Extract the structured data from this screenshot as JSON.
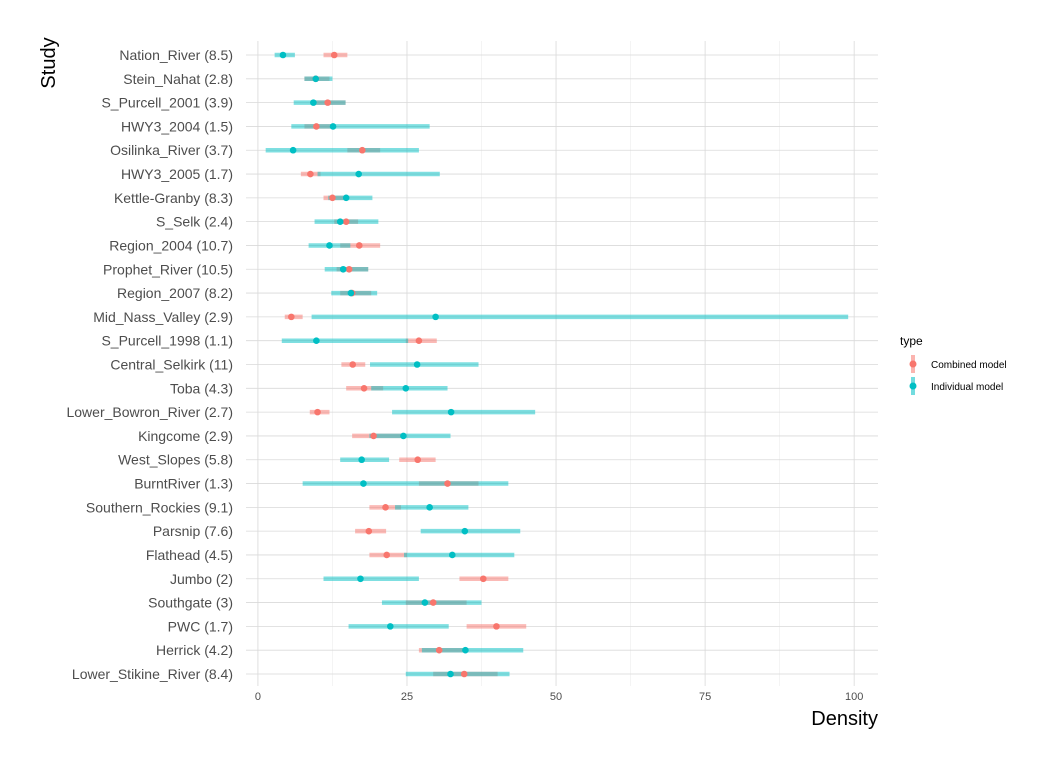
{
  "chart_data": {
    "type": "forest",
    "xlabel": "Density",
    "ylabel": "Study",
    "xlim": [
      -2,
      104
    ],
    "xticks": [
      0,
      25,
      50,
      75,
      100
    ],
    "grid": true,
    "legend": {
      "title": "type",
      "placement": "right",
      "entries": [
        {
          "name": "Combined model",
          "color": "#F8766D"
        },
        {
          "name": "Individual model",
          "color": "#00BFC4"
        }
      ]
    },
    "studies": [
      {
        "label": "Nation_River (8.5)",
        "combined": {
          "est": 12.8,
          "lo": 11.0,
          "hi": 15.0
        },
        "individual": {
          "est": 4.2,
          "lo": 2.8,
          "hi": 6.2
        }
      },
      {
        "label": "Stein_Nahat (2.8)",
        "combined": {
          "est": 9.7,
          "lo": 7.8,
          "hi": 12.0
        },
        "individual": {
          "est": 9.7,
          "lo": 7.8,
          "hi": 12.5
        }
      },
      {
        "label": "S_Purcell_2001 (3.9)",
        "combined": {
          "est": 11.7,
          "lo": 9.6,
          "hi": 14.7
        },
        "individual": {
          "est": 9.3,
          "lo": 6.0,
          "hi": 14.7
        }
      },
      {
        "label": "HWY3_2004 (1.5)",
        "combined": {
          "est": 9.8,
          "lo": 7.8,
          "hi": 12.5
        },
        "individual": {
          "est": 12.6,
          "lo": 5.6,
          "hi": 28.8
        }
      },
      {
        "label": "Osilinka_River (3.7)",
        "combined": {
          "est": 17.5,
          "lo": 15.0,
          "hi": 20.5
        },
        "individual": {
          "est": 5.9,
          "lo": 1.3,
          "hi": 27.0
        }
      },
      {
        "label": "HWY3_2005 (1.7)",
        "combined": {
          "est": 8.8,
          "lo": 7.2,
          "hi": 10.5
        },
        "individual": {
          "est": 16.9,
          "lo": 10.0,
          "hi": 30.5
        }
      },
      {
        "label": "Kettle-Granby (8.3)",
        "combined": {
          "est": 12.5,
          "lo": 11.0,
          "hi": 14.5
        },
        "individual": {
          "est": 14.8,
          "lo": 11.8,
          "hi": 19.2
        }
      },
      {
        "label": "S_Selk (2.4)",
        "combined": {
          "est": 14.8,
          "lo": 12.8,
          "hi": 16.8
        },
        "individual": {
          "est": 13.8,
          "lo": 9.5,
          "hi": 20.2
        }
      },
      {
        "label": "Region_2004 (10.7)",
        "combined": {
          "est": 17.0,
          "lo": 13.8,
          "hi": 20.5
        },
        "individual": {
          "est": 12.0,
          "lo": 8.5,
          "hi": 15.5
        }
      },
      {
        "label": "Prophet_River (10.5)",
        "combined": {
          "est": 15.3,
          "lo": 13.2,
          "hi": 18.5
        },
        "individual": {
          "est": 14.3,
          "lo": 11.2,
          "hi": 18.5
        }
      },
      {
        "label": "Region_2007 (8.2)",
        "combined": {
          "est": 15.8,
          "lo": 13.8,
          "hi": 19.0
        },
        "individual": {
          "est": 15.6,
          "lo": 12.3,
          "hi": 20.0
        }
      },
      {
        "label": "Mid_Nass_Valley (2.9)",
        "combined": {
          "est": 5.6,
          "lo": 4.5,
          "hi": 7.5
        },
        "individual": {
          "est": 29.8,
          "lo": 9.0,
          "hi": 99.0
        }
      },
      {
        "label": "S_Purcell_1998 (1.1)",
        "combined": {
          "est": 27.0,
          "lo": 24.8,
          "hi": 30.0
        },
        "individual": {
          "est": 9.8,
          "lo": 4.0,
          "hi": 25.2
        }
      },
      {
        "label": "Central_Selkirk (11)",
        "combined": {
          "est": 15.9,
          "lo": 14.0,
          "hi": 18.0
        },
        "individual": {
          "est": 26.7,
          "lo": 18.8,
          "hi": 37.0
        }
      },
      {
        "label": "Toba (4.3)",
        "combined": {
          "est": 17.8,
          "lo": 14.8,
          "hi": 21.0
        },
        "individual": {
          "est": 24.8,
          "lo": 19.0,
          "hi": 31.8
        }
      },
      {
        "label": "Lower_Bowron_River (2.7)",
        "combined": {
          "est": 10.0,
          "lo": 8.7,
          "hi": 12.0
        },
        "individual": {
          "est": 32.4,
          "lo": 22.5,
          "hi": 46.5
        }
      },
      {
        "label": "Kingcome (2.9)",
        "combined": {
          "est": 19.4,
          "lo": 15.8,
          "hi": 24.5
        },
        "individual": {
          "est": 24.4,
          "lo": 18.7,
          "hi": 32.3
        }
      },
      {
        "label": "West_Slopes (5.8)",
        "combined": {
          "est": 26.8,
          "lo": 23.7,
          "hi": 29.8
        },
        "individual": {
          "est": 17.4,
          "lo": 13.8,
          "hi": 22.0
        }
      },
      {
        "label": "BurntRiver (1.3)",
        "combined": {
          "est": 31.8,
          "lo": 27.0,
          "hi": 37.0
        },
        "individual": {
          "est": 17.7,
          "lo": 7.5,
          "hi": 42.0
        }
      },
      {
        "label": "Southern_Rockies (9.1)",
        "combined": {
          "est": 21.4,
          "lo": 18.7,
          "hi": 24.0
        },
        "individual": {
          "est": 28.8,
          "lo": 23.0,
          "hi": 35.3
        }
      },
      {
        "label": "Parsnip (7.6)",
        "combined": {
          "est": 18.6,
          "lo": 16.3,
          "hi": 21.5
        },
        "individual": {
          "est": 34.7,
          "lo": 27.3,
          "hi": 44.0
        }
      },
      {
        "label": "Flathead (4.5)",
        "combined": {
          "est": 21.6,
          "lo": 18.7,
          "hi": 25.0
        },
        "individual": {
          "est": 32.6,
          "lo": 24.5,
          "hi": 43.0
        }
      },
      {
        "label": "Jumbo (2)",
        "combined": {
          "est": 37.8,
          "lo": 33.8,
          "hi": 42.0
        },
        "individual": {
          "est": 17.2,
          "lo": 11.0,
          "hi": 27.0
        }
      },
      {
        "label": "Southgate (3)",
        "combined": {
          "est": 29.4,
          "lo": 24.8,
          "hi": 35.0
        },
        "individual": {
          "est": 28.0,
          "lo": 20.8,
          "hi": 37.5
        }
      },
      {
        "label": "PWC (1.7)",
        "combined": {
          "est": 40.0,
          "lo": 35.0,
          "hi": 45.0
        },
        "individual": {
          "est": 22.2,
          "lo": 15.2,
          "hi": 32.0
        }
      },
      {
        "label": "Herrick (4.2)",
        "combined": {
          "est": 30.4,
          "lo": 27.0,
          "hi": 34.8
        },
        "individual": {
          "est": 34.8,
          "lo": 27.5,
          "hi": 44.5
        }
      },
      {
        "label": "Lower_Stikine_River (8.4)",
        "combined": {
          "est": 34.6,
          "lo": 29.4,
          "hi": 40.2
        },
        "individual": {
          "est": 32.3,
          "lo": 24.8,
          "hi": 42.2
        }
      }
    ]
  }
}
